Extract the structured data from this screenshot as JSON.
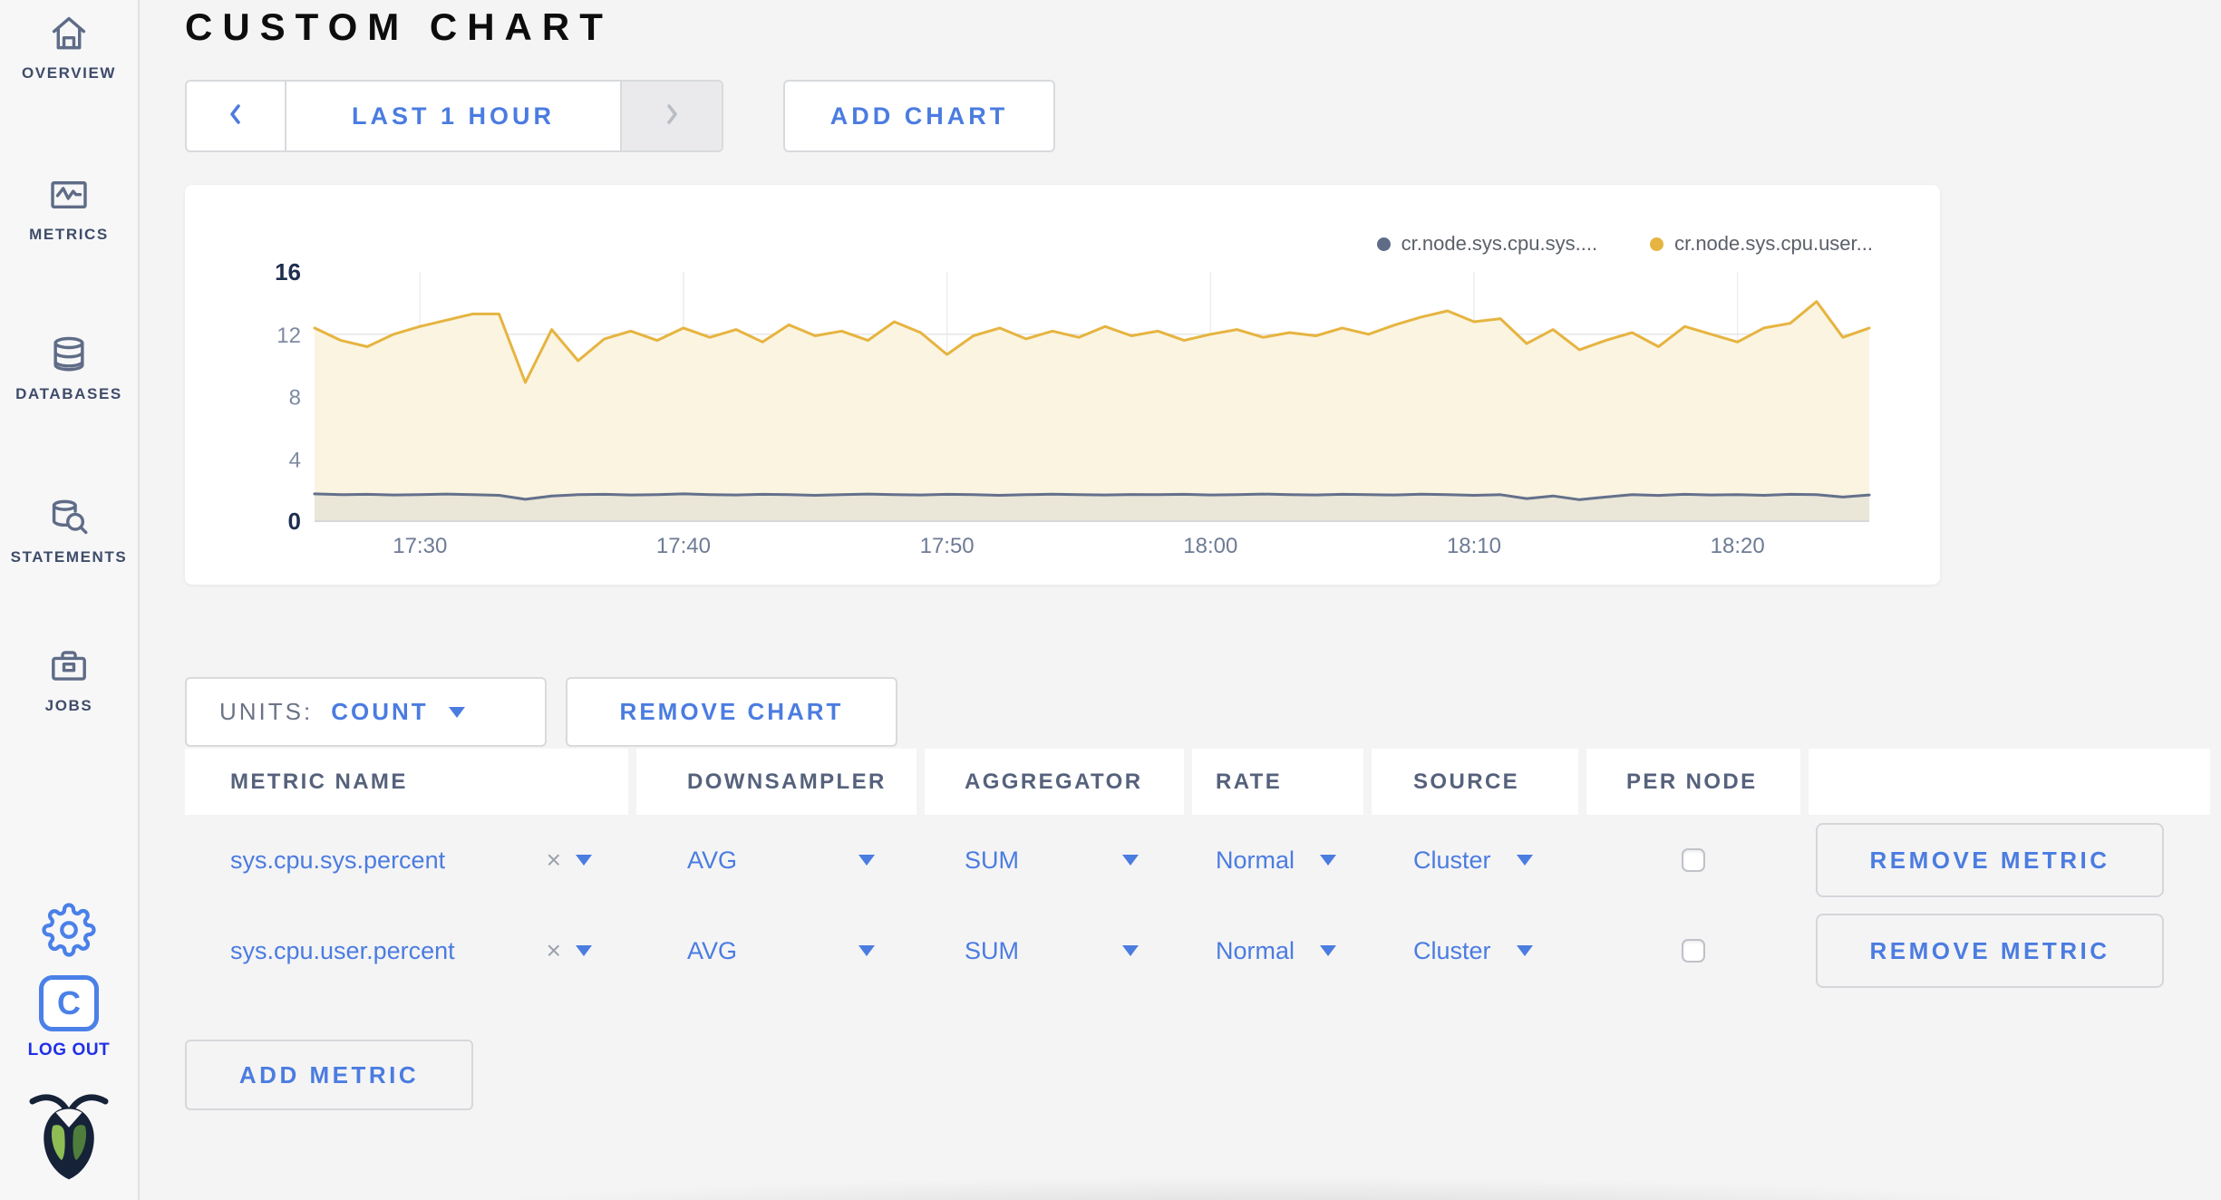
{
  "page": {
    "title": "CUSTOM CHART"
  },
  "sidebar": {
    "items": [
      {
        "label": "OVERVIEW"
      },
      {
        "label": "METRICS"
      },
      {
        "label": "DATABASES"
      },
      {
        "label": "STATEMENTS"
      },
      {
        "label": "JOBS"
      }
    ],
    "logo_letter": "C",
    "logout_label": "LOG OUT"
  },
  "toolbar": {
    "time_range": "LAST 1 HOUR",
    "add_chart": "ADD CHART"
  },
  "chart_card": {
    "legend": [
      {
        "label": "cr.node.sys.cpu.sys....",
        "color": "#5f6c87"
      },
      {
        "label": "cr.node.sys.cpu.user...",
        "color": "#e6b440"
      }
    ]
  },
  "units": {
    "label": "UNITS:",
    "value": "COUNT"
  },
  "buttons": {
    "remove_chart": "REMOVE CHART",
    "add_metric": "ADD METRIC",
    "remove_metric": "REMOVE METRIC"
  },
  "table": {
    "headers": [
      "METRIC NAME",
      "DOWNSAMPLER",
      "AGGREGATOR",
      "RATE",
      "SOURCE",
      "PER NODE"
    ],
    "rows": [
      {
        "name": "sys.cpu.sys.percent",
        "downsampler": "AVG",
        "aggregator": "SUM",
        "rate": "Normal",
        "source": "Cluster",
        "per_node_checked": false
      },
      {
        "name": "sys.cpu.user.percent",
        "downsampler": "AVG",
        "aggregator": "SUM",
        "rate": "Normal",
        "source": "Cluster",
        "per_node_checked": false
      }
    ]
  },
  "chart_data": {
    "type": "line",
    "title": "",
    "xlabel": "",
    "ylabel": "",
    "ylim": [
      0,
      16
    ],
    "y_tick_labels": [
      0,
      4,
      8,
      12,
      16
    ],
    "y_gridlines": [
      4,
      8,
      12
    ],
    "x_total_minutes": 59,
    "x_ticks": [
      {
        "label": "17:30",
        "minute": 4
      },
      {
        "label": "17:40",
        "minute": 14
      },
      {
        "label": "17:50",
        "minute": 24
      },
      {
        "label": "18:00",
        "minute": 34
      },
      {
        "label": "18:10",
        "minute": 44
      },
      {
        "label": "18:20",
        "minute": 54
      }
    ],
    "grid": true,
    "legend_position": "top-right",
    "series": [
      {
        "name": "cr.node.sys.cpu.sys.percent",
        "color": "#64708b",
        "fill": "rgba(99,110,136,0.10)",
        "values": [
          1.75,
          1.7,
          1.72,
          1.68,
          1.7,
          1.74,
          1.7,
          1.66,
          1.4,
          1.62,
          1.7,
          1.72,
          1.68,
          1.7,
          1.75,
          1.7,
          1.68,
          1.72,
          1.7,
          1.66,
          1.7,
          1.74,
          1.7,
          1.68,
          1.72,
          1.7,
          1.66,
          1.7,
          1.73,
          1.7,
          1.68,
          1.71,
          1.7,
          1.72,
          1.68,
          1.7,
          1.74,
          1.7,
          1.68,
          1.72,
          1.7,
          1.68,
          1.73,
          1.7,
          1.66,
          1.7,
          1.45,
          1.62,
          1.38,
          1.55,
          1.7,
          1.65,
          1.72,
          1.68,
          1.7,
          1.66,
          1.72,
          1.7,
          1.55,
          1.68
        ]
      },
      {
        "name": "cr.node.sys.cpu.user.percent",
        "color": "#e6b440",
        "fill": "#faf4e1",
        "values": [
          12.4,
          11.6,
          11.2,
          12.0,
          12.5,
          12.9,
          13.3,
          13.3,
          8.9,
          12.3,
          10.3,
          11.7,
          12.2,
          11.6,
          12.4,
          11.8,
          12.3,
          11.5,
          12.6,
          11.9,
          12.2,
          11.6,
          12.8,
          12.1,
          10.7,
          11.9,
          12.4,
          11.7,
          12.2,
          11.8,
          12.5,
          11.9,
          12.2,
          11.6,
          12.0,
          12.3,
          11.8,
          12.1,
          11.9,
          12.4,
          12.0,
          12.6,
          13.1,
          13.5,
          12.8,
          13.0,
          11.4,
          12.3,
          11.0,
          11.6,
          12.1,
          11.2,
          12.5,
          12.0,
          11.5,
          12.4,
          12.7,
          14.1,
          11.8,
          12.4
        ]
      }
    ]
  }
}
